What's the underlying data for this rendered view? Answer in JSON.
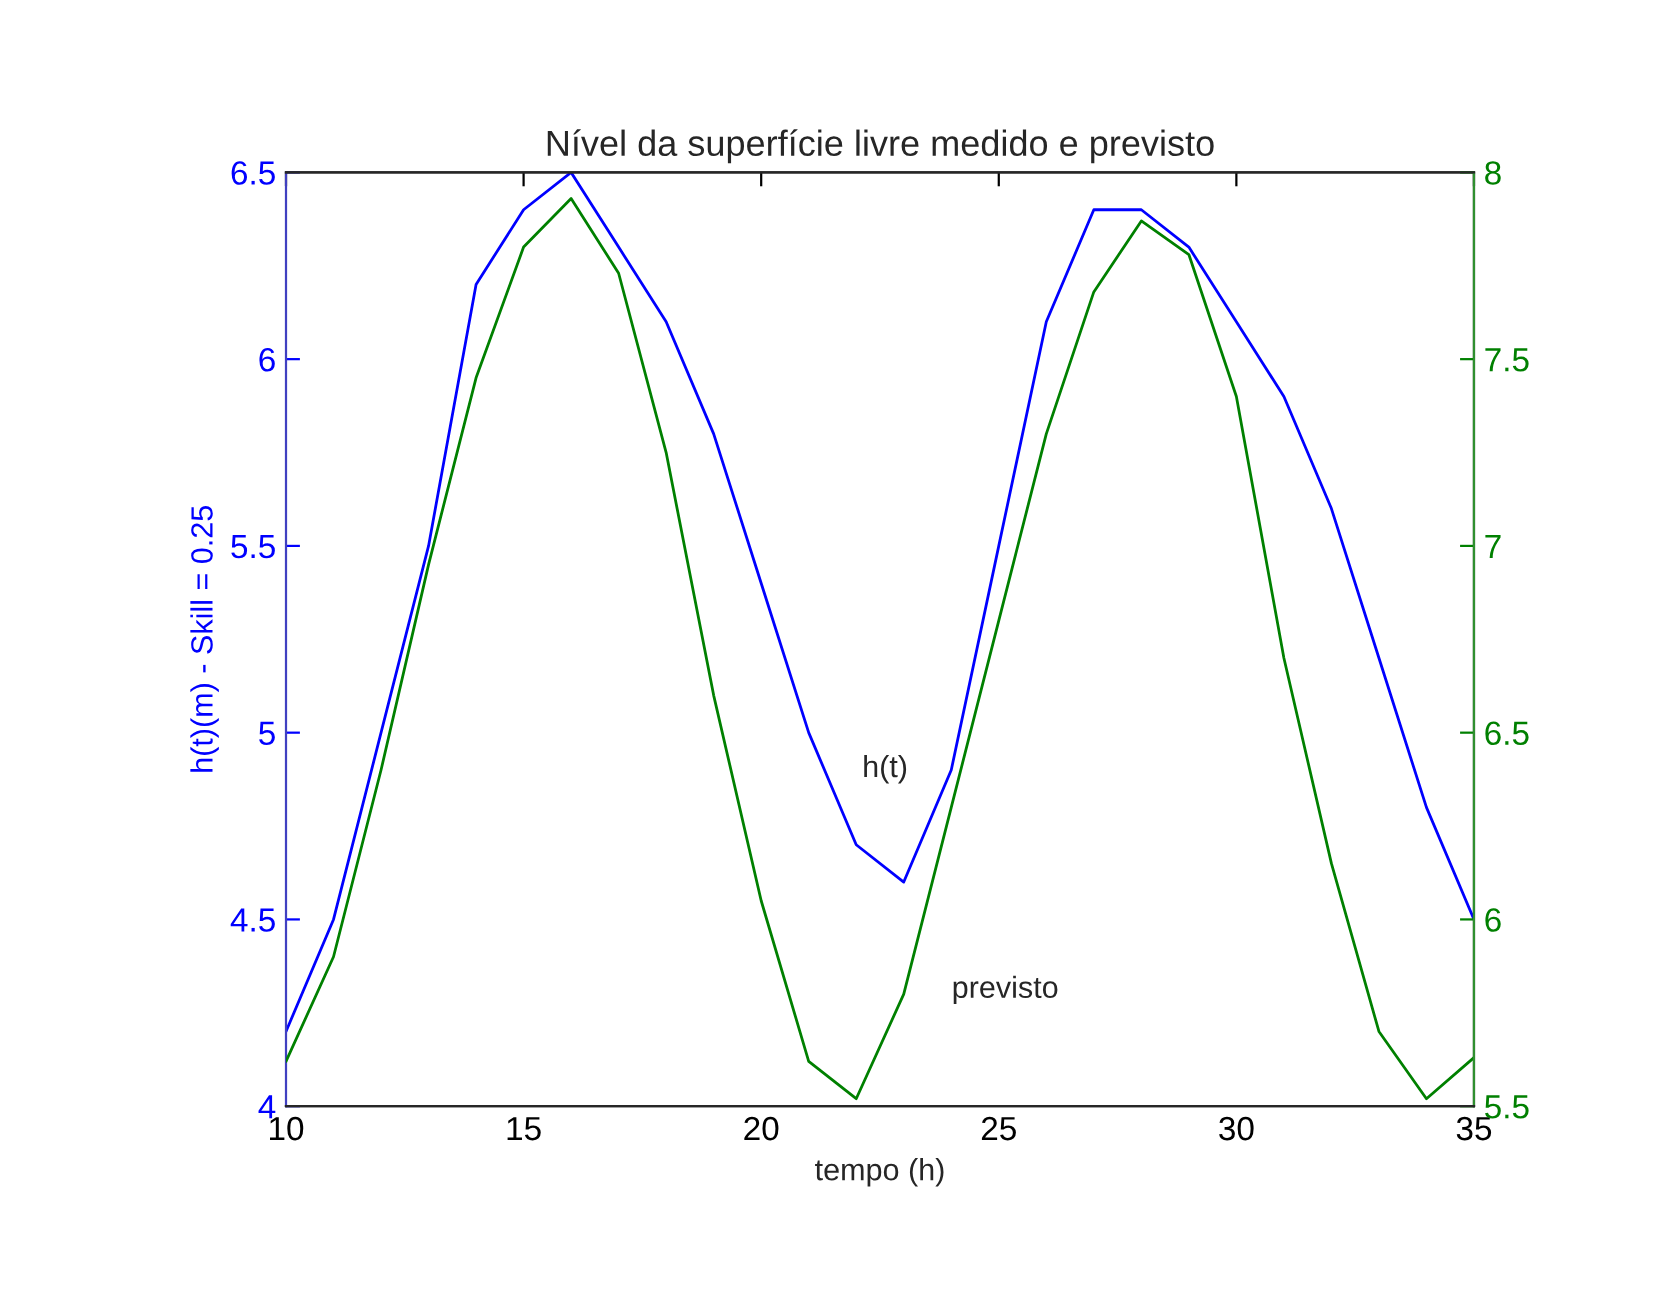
{
  "chart_data": {
    "type": "line",
    "title": "Nível da superfície livre medido e previsto",
    "xlabel": "tempo (h)",
    "ylabel": "h(t)(m) - Skill = 0.25",
    "x": [
      10,
      11,
      12,
      13,
      14,
      15,
      16,
      17,
      18,
      19,
      20,
      21,
      22,
      23,
      24,
      25,
      26,
      27,
      28,
      29,
      30,
      31,
      32,
      33,
      34,
      35
    ],
    "series": [
      {
        "color": "#0000ff",
        "values": [
          4.2,
          4.5,
          5.0,
          5.5,
          6.2,
          6.4,
          6.5,
          6.3,
          6.1,
          5.8,
          5.4,
          5.0,
          4.7,
          4.6,
          4.9,
          5.5,
          6.1,
          6.4,
          6.4,
          6.3,
          6.1,
          5.9,
          5.6,
          5.2,
          4.8,
          4.5
        ]
      },
      {
        "color": "#008000",
        "axis": "y2",
        "values": [
          5.62,
          5.9,
          6.4,
          6.95,
          7.45,
          7.8,
          7.93,
          7.73,
          7.25,
          6.6,
          6.05,
          5.62,
          5.52,
          5.8,
          6.3,
          6.8,
          7.3,
          7.68,
          7.87,
          7.78,
          7.4,
          6.7,
          6.15,
          5.7,
          5.52,
          5.63
        ]
      }
    ],
    "annotations": [
      "h(t)",
      "previsto"
    ],
    "xlim": [
      10,
      35
    ],
    "xticks": [
      10,
      15,
      20,
      25,
      30,
      35
    ],
    "ylim": [
      4,
      6.5
    ],
    "yticks": [
      4,
      4.5,
      5,
      5.5,
      6,
      6.5
    ],
    "y2lim": [
      5.5,
      8
    ],
    "y2ticks": [
      5.5,
      6,
      6.5,
      7,
      7.5,
      8
    ],
    "grid": false,
    "legend": false,
    "marker": "none",
    "line_style": "solid"
  }
}
